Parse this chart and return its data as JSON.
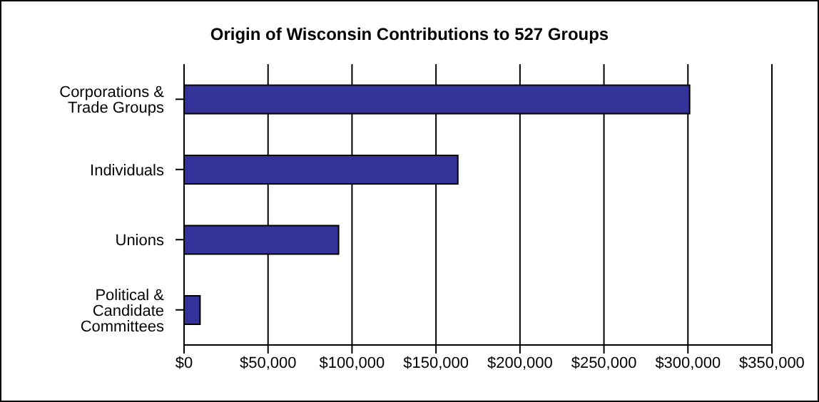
{
  "chart_data": {
    "type": "bar",
    "orientation": "horizontal",
    "title": "Origin of Wisconsin Contributions to 527 Groups",
    "categories": [
      "Corporations & Trade Groups",
      "Individuals",
      "Unions",
      "Political & Candidate Committees"
    ],
    "values": [
      301000,
      163000,
      92000,
      9500
    ],
    "color": "#333399",
    "xlim": [
      0,
      350000
    ],
    "xticks": [
      {
        "value": 0,
        "label": "$0"
      },
      {
        "value": 50000,
        "label": "$50,000"
      },
      {
        "value": 100000,
        "label": "$100,000"
      },
      {
        "value": 150000,
        "label": "$150,000"
      },
      {
        "value": 200000,
        "label": "$200,000"
      },
      {
        "value": 250000,
        "label": "$250,000"
      },
      {
        "value": 300000,
        "label": "$300,000"
      },
      {
        "value": 350000,
        "label": "$350,000"
      }
    ],
    "grid": "x",
    "legend": false
  }
}
